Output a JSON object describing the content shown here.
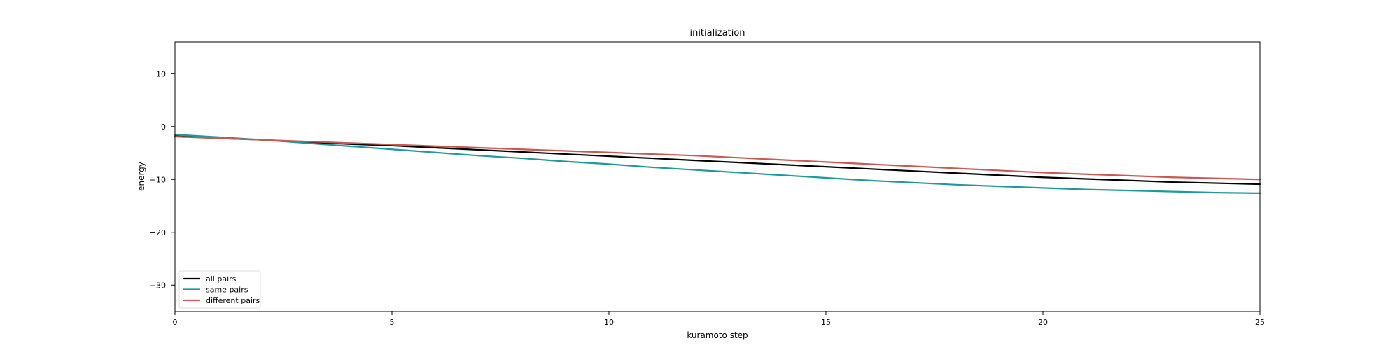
{
  "chart_data": {
    "type": "line",
    "title": "initialization",
    "xlabel": "kuramoto step",
    "ylabel": "energy",
    "xlim": [
      0,
      25
    ],
    "ylim": [
      -35,
      16
    ],
    "xticks": [
      0,
      5,
      10,
      15,
      20,
      25
    ],
    "yticks": [
      10,
      0,
      -10,
      -20,
      -30
    ],
    "grid": false,
    "legend_placement": "lower-left",
    "x": [
      0,
      1,
      2,
      3,
      4,
      5,
      6,
      7,
      8,
      9,
      10,
      11,
      12,
      13,
      14,
      15,
      16,
      17,
      18,
      19,
      20,
      21,
      22,
      23,
      24,
      25
    ],
    "series": [
      {
        "name": "all pairs",
        "color": "#000000",
        "values": [
          -1.8,
          -2.2,
          -2.5,
          -2.9,
          -3.3,
          -3.6,
          -4.0,
          -4.4,
          -4.8,
          -5.2,
          -5.6,
          -6.0,
          -6.4,
          -6.8,
          -7.2,
          -7.6,
          -8.0,
          -8.4,
          -8.8,
          -9.2,
          -9.6,
          -9.9,
          -10.2,
          -10.5,
          -10.7,
          -10.9
        ]
      },
      {
        "name": "same pairs",
        "color": "#21999a",
        "values": [
          -1.5,
          -2.0,
          -2.5,
          -3.1,
          -3.7,
          -4.3,
          -4.9,
          -5.5,
          -6.0,
          -6.6,
          -7.1,
          -7.7,
          -8.2,
          -8.7,
          -9.2,
          -9.7,
          -10.2,
          -10.6,
          -11.0,
          -11.3,
          -11.6,
          -11.9,
          -12.1,
          -12.3,
          -12.5,
          -12.6
        ]
      },
      {
        "name": "different pairs",
        "color": "#c85a55",
        "values": [
          -1.9,
          -2.2,
          -2.5,
          -2.8,
          -3.1,
          -3.4,
          -3.7,
          -4.0,
          -4.3,
          -4.6,
          -4.9,
          -5.2,
          -5.5,
          -5.9,
          -6.3,
          -6.7,
          -7.1,
          -7.5,
          -7.9,
          -8.3,
          -8.7,
          -9.0,
          -9.3,
          -9.6,
          -9.8,
          -10.0
        ]
      }
    ]
  }
}
